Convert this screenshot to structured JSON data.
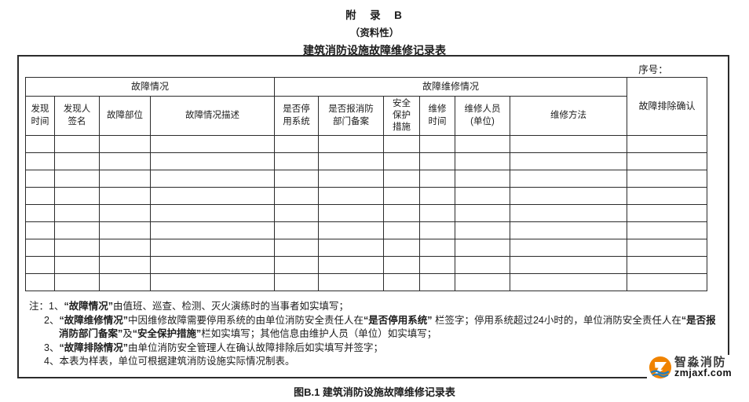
{
  "page": {
    "title_line1": "附　录　B",
    "title_line2": "（资料性）",
    "title_line3": "建筑消防设施故障维修记录表",
    "caption": "图B.1 建筑消防设施故障维修记录表"
  },
  "form": {
    "serial_label": "序号："
  },
  "table": {
    "group_headers": [
      "故障情况",
      "故障维修情况"
    ],
    "confirm_header": "故障排除确认",
    "columns": [
      "发现\n时间",
      "发现人\n签名",
      "故障部位",
      "故障情况描述",
      "是否停\n用系统",
      "是否报消防\n部门备案",
      "安全\n保护\n措施",
      "维修\n时间",
      "维修人员\n(单位)",
      "维修方法"
    ],
    "column_count": 11,
    "empty_row_count": 9
  },
  "notes": {
    "prefix": "注：",
    "items": [
      [
        {
          "text": "1、"
        },
        {
          "text": "“故障情况”",
          "bold": true
        },
        {
          "text": "由值班、巡查、检测、灭火演练时的当事者如实填写；"
        }
      ],
      [
        {
          "text": "2、"
        },
        {
          "text": "“故障维修情况”",
          "bold": true
        },
        {
          "text": "中因维修故障需要停用系统的由单位消防安全责任人在"
        },
        {
          "text": "“是否停用系统”",
          "bold": true
        },
        {
          "text": " 栏签字；停用系统超过24小时的，单位消防安全责任人在"
        },
        {
          "text": "“是否报消防部门备案”",
          "bold": true
        },
        {
          "text": "及"
        },
        {
          "text": "“安全保护措施”",
          "bold": true
        },
        {
          "text": "栏如实填写；其他信息由维护人员（单位）如实填写；"
        }
      ],
      [
        {
          "text": "3、"
        },
        {
          "text": "“故障排除情况”",
          "bold": true
        },
        {
          "text": "由单位消防安全管理人在确认故障排除后如实填写并签字；"
        }
      ],
      [
        {
          "text": "4、本表为样表，单位可根据建筑消防设施实际情况制表。"
        }
      ]
    ]
  },
  "logo": {
    "name": "智淼消防",
    "domain": "zmjaxf.com",
    "orange": "#f08300",
    "blue": "#1f7ec2"
  }
}
